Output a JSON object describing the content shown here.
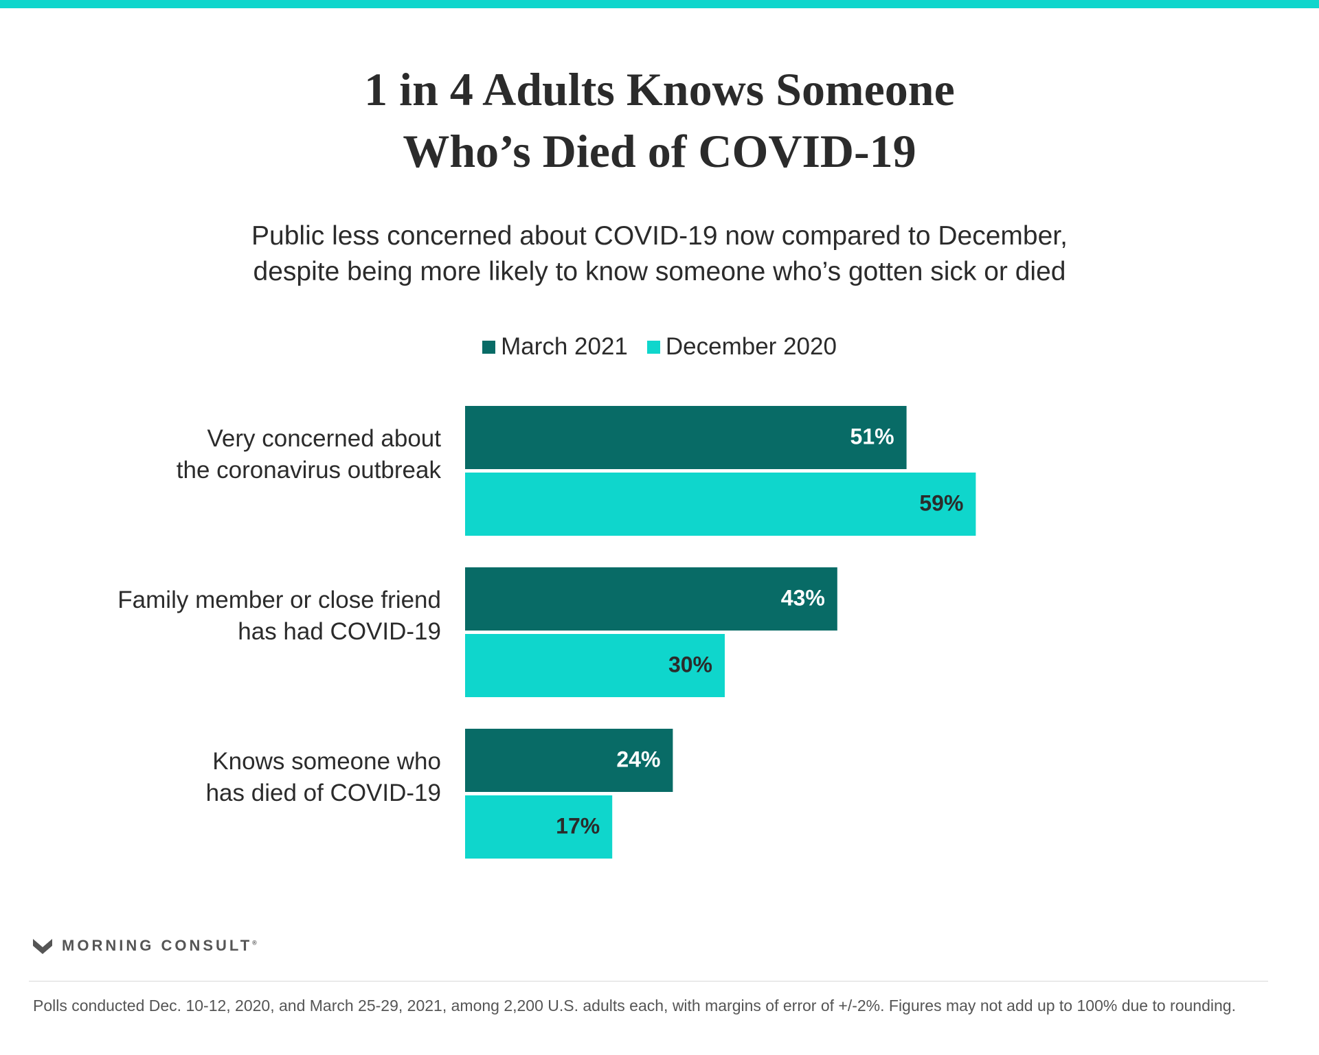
{
  "header": {
    "title_line1": "1 in 4 Adults Knows Someone",
    "title_line2": "Who’s Died of COVID-19",
    "subtitle_line1": "Public less concerned about COVID-19 now compared to December,",
    "subtitle_line2": "despite being more likely to know someone who’s gotten sick or died"
  },
  "colors": {
    "accent": "#0fd6cc",
    "march": "#086b66",
    "december": "#0fd6cc",
    "label_light": "#ffffff",
    "label_dark": "#2b2b2b",
    "text": "#2b2b2b"
  },
  "chart_data": {
    "type": "bar",
    "orientation": "horizontal",
    "categories": [
      [
        "Very concerned about",
        "the coronavirus outbreak"
      ],
      [
        "Family member or close friend",
        "has had COVID-19"
      ],
      [
        "Knows someone who",
        "has died of COVID-19"
      ]
    ],
    "series": [
      {
        "name": "March 2021",
        "values": [
          51,
          43,
          24
        ],
        "labels": [
          "51%",
          "43%",
          "24%"
        ]
      },
      {
        "name": "December 2020",
        "values": [
          59,
          30,
          17
        ],
        "labels": [
          "59%",
          "30%",
          "17%"
        ]
      }
    ],
    "xlim": [
      0,
      100
    ],
    "grid": false,
    "legend_position": "top-center"
  },
  "footer": {
    "logo_text": "MORNING CONSULT",
    "logo_mark": "®",
    "footnote": "Polls conducted Dec. 10-12, 2020, and March 25-29, 2021, among 2,200 U.S. adults each, with margins of error of +/-2%. Figures may not add up to 100% due to rounding."
  }
}
